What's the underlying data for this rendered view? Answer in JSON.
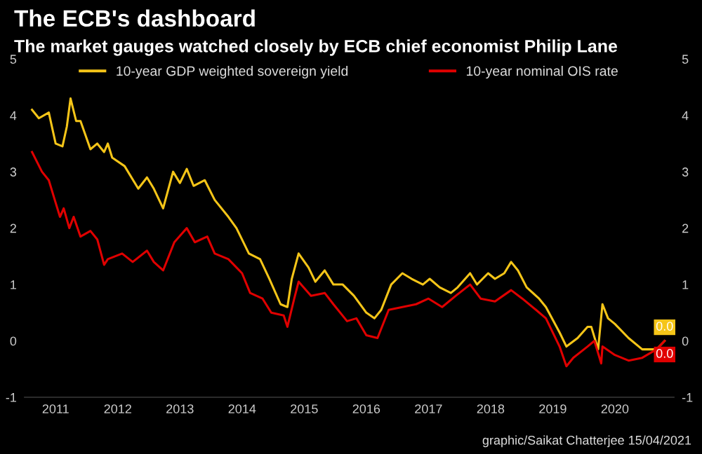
{
  "chart_data": {
    "type": "line",
    "title": "The ECB's dashboard",
    "subtitle": "The market gauges watched closely by ECB chief economist Philip Lane",
    "annotations": [
      "graphic/Saikat Chatterjee 15/04/2021"
    ],
    "xticks": [
      {
        "value": 2011.5,
        "label": "2011"
      },
      {
        "value": 2012.5,
        "label": "2012"
      },
      {
        "value": 2013.5,
        "label": "2013"
      },
      {
        "value": 2014.5,
        "label": "2014"
      },
      {
        "value": 2015.5,
        "label": "2015"
      },
      {
        "value": 2016.5,
        "label": "2016"
      },
      {
        "value": 2017.5,
        "label": "2017"
      },
      {
        "value": 2018.5,
        "label": "2018"
      },
      {
        "value": 2019.5,
        "label": "2019"
      },
      {
        "value": 2020.5,
        "label": "2020"
      }
    ],
    "xlim": [
      2011.0,
      2021.45
    ],
    "ylim": [
      -1,
      5
    ],
    "yticks": [
      -1,
      0,
      1,
      2,
      3,
      4,
      5
    ],
    "y2lim": [
      -1,
      5
    ],
    "y2ticks": [
      -1,
      0,
      1,
      2,
      3,
      4,
      5
    ],
    "grid": false,
    "legend": "top",
    "marker": "none",
    "line_style": "solid",
    "series": [
      {
        "name": "10-year GDP weighted sovereign yield",
        "color": "#f5c518",
        "x": [
          2011.12,
          2011.23,
          2011.39,
          2011.5,
          2011.61,
          2011.68,
          2011.74,
          2011.83,
          2011.9,
          2012.06,
          2012.17,
          2012.28,
          2012.34,
          2012.41,
          2012.61,
          2012.83,
          2012.97,
          2013.08,
          2013.23,
          2013.39,
          2013.5,
          2013.61,
          2013.72,
          2013.9,
          2014.06,
          2014.28,
          2014.41,
          2014.61,
          2014.79,
          2014.94,
          2015.12,
          2015.23,
          2015.3,
          2015.41,
          2015.57,
          2015.68,
          2015.83,
          2015.97,
          2016.12,
          2016.3,
          2016.5,
          2016.63,
          2016.74,
          2016.9,
          2017.08,
          2017.23,
          2017.41,
          2017.52,
          2017.68,
          2017.86,
          2017.97,
          2018.17,
          2018.28,
          2018.46,
          2018.57,
          2018.72,
          2018.83,
          2018.94,
          2019.08,
          2019.28,
          2019.39,
          2019.61,
          2019.72,
          2019.9,
          2020.06,
          2020.12,
          2020.23,
          2020.3,
          2020.39,
          2020.5,
          2020.72,
          2020.94,
          2021.17,
          2021.3
        ],
        "values": [
          4.1,
          3.95,
          4.05,
          3.5,
          3.45,
          3.8,
          4.3,
          3.9,
          3.9,
          3.4,
          3.5,
          3.35,
          3.5,
          3.25,
          3.1,
          2.7,
          2.9,
          2.7,
          2.35,
          3.0,
          2.8,
          3.05,
          2.75,
          2.85,
          2.5,
          2.2,
          2.0,
          1.55,
          1.45,
          1.1,
          0.65,
          0.6,
          1.1,
          1.55,
          1.3,
          1.05,
          1.25,
          1.0,
          1.0,
          0.8,
          0.5,
          0.4,
          0.55,
          1.0,
          1.2,
          1.1,
          1.0,
          1.1,
          0.95,
          0.85,
          0.95,
          1.2,
          1.0,
          1.2,
          1.1,
          1.2,
          1.4,
          1.25,
          0.95,
          0.75,
          0.6,
          0.15,
          -0.1,
          0.05,
          0.25,
          0.25,
          -0.15,
          0.65,
          0.4,
          0.3,
          0.05,
          -0.15,
          -0.15,
          0.0
        ],
        "value_labels": [
          null,
          null,
          null,
          null,
          null,
          null,
          null,
          null,
          null,
          null,
          null,
          null,
          null,
          null,
          null,
          null,
          null,
          null,
          null,
          null,
          null,
          null,
          null,
          null,
          null,
          null,
          null,
          null,
          null,
          null,
          null,
          null,
          null,
          null,
          null,
          null,
          null,
          null,
          null,
          null,
          null,
          null,
          null,
          null,
          null,
          null,
          null,
          null,
          null,
          null,
          null,
          null,
          null,
          null,
          null,
          null,
          null,
          null,
          null,
          null,
          null,
          null,
          null,
          null,
          null,
          null,
          null,
          null,
          null,
          null,
          null,
          null,
          null,
          "0.0"
        ]
      },
      {
        "name": "10-year nominal OIS rate",
        "color": "#e00000",
        "x": [
          2011.12,
          2011.28,
          2011.39,
          2011.5,
          2011.57,
          2011.63,
          2011.72,
          2011.79,
          2011.9,
          2012.06,
          2012.17,
          2012.28,
          2012.34,
          2012.57,
          2012.74,
          2012.97,
          2013.08,
          2013.23,
          2013.41,
          2013.61,
          2013.74,
          2013.94,
          2014.06,
          2014.28,
          2014.5,
          2014.63,
          2014.83,
          2014.97,
          2015.17,
          2015.23,
          2015.34,
          2015.41,
          2015.61,
          2015.83,
          2015.97,
          2016.19,
          2016.34,
          2016.5,
          2016.68,
          2016.86,
          2017.08,
          2017.3,
          2017.5,
          2017.72,
          2017.94,
          2018.17,
          2018.34,
          2018.57,
          2018.83,
          2019.01,
          2019.23,
          2019.39,
          2019.61,
          2019.72,
          2019.83,
          2020.06,
          2020.17,
          2020.28,
          2020.3,
          2020.5,
          2020.72,
          2020.94,
          2021.17,
          2021.3
        ],
        "values": [
          3.35,
          3.0,
          2.85,
          2.45,
          2.2,
          2.35,
          2.0,
          2.2,
          1.85,
          1.95,
          1.8,
          1.35,
          1.45,
          1.55,
          1.4,
          1.6,
          1.4,
          1.25,
          1.75,
          2.0,
          1.75,
          1.85,
          1.55,
          1.45,
          1.2,
          0.85,
          0.75,
          0.5,
          0.45,
          0.25,
          0.75,
          1.05,
          0.8,
          0.85,
          0.65,
          0.35,
          0.4,
          0.1,
          0.05,
          0.55,
          0.6,
          0.65,
          0.75,
          0.6,
          0.8,
          1.0,
          0.75,
          0.7,
          0.9,
          0.75,
          0.55,
          0.4,
          -0.1,
          -0.45,
          -0.3,
          -0.1,
          0.0,
          -0.4,
          -0.1,
          -0.25,
          -0.35,
          -0.3,
          -0.15,
          0.0
        ],
        "value_labels": [
          null,
          null,
          null,
          null,
          null,
          null,
          null,
          null,
          null,
          null,
          null,
          null,
          null,
          null,
          null,
          null,
          null,
          null,
          null,
          null,
          null,
          null,
          null,
          null,
          null,
          null,
          null,
          null,
          null,
          null,
          null,
          null,
          null,
          null,
          null,
          null,
          null,
          null,
          null,
          null,
          null,
          null,
          null,
          null,
          null,
          null,
          null,
          null,
          null,
          null,
          null,
          null,
          null,
          null,
          null,
          null,
          null,
          null,
          null,
          null,
          null,
          null,
          null,
          "0.0"
        ]
      }
    ]
  }
}
